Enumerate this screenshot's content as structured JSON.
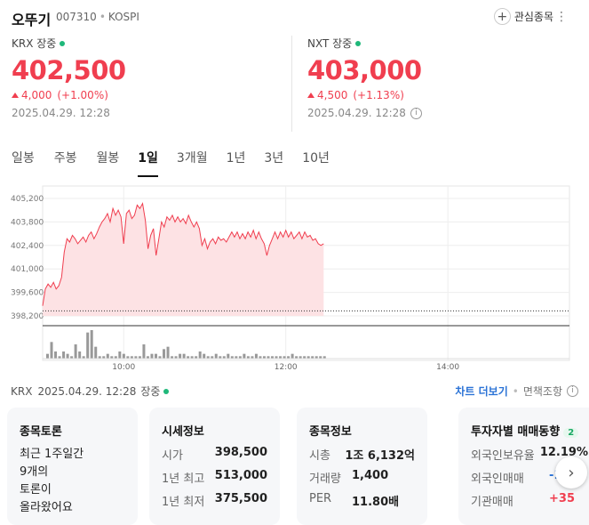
{
  "header": {
    "name": "오뚜기",
    "code": "007310",
    "market": "KOSPI",
    "watch_label": "관심종목",
    "more_icon": "more-vertical-icon"
  },
  "krx": {
    "label": "KRX 장중",
    "price": "402,500",
    "change": "4,000",
    "change_pct": "(+1.00%)",
    "timestamp": "2025.04.29. 12:28"
  },
  "nxt": {
    "label": "NXT 장중",
    "price": "403,000",
    "change": "4,500",
    "change_pct": "(+1.13%)",
    "timestamp": "2025.04.29. 12:28"
  },
  "tabs": [
    {
      "label": "일봉"
    },
    {
      "label": "주봉"
    },
    {
      "label": "월봉"
    },
    {
      "label": "1일"
    },
    {
      "label": "3개월"
    },
    {
      "label": "1년"
    },
    {
      "label": "3년"
    },
    {
      "label": "10년"
    }
  ],
  "active_tab": "1일",
  "colors": {
    "up": "#f03e4f",
    "fill": "#fde2e4",
    "live": "#1fb87a",
    "link": "#2b73d6"
  },
  "chart_data": {
    "type": "area",
    "title": "",
    "y_ticks": [
      "405,200",
      "403,800",
      "402,400",
      "401,000",
      "399,600",
      "398,200"
    ],
    "x_ticks": [
      "10:00",
      "12:00",
      "14:00"
    ],
    "ylim": [
      398200,
      405200
    ],
    "prev_close": 398500,
    "x_minutes_start": "09:00",
    "x_minutes_end": "15:30",
    "price_series": [
      [
        "09:00",
        398800
      ],
      [
        "09:02",
        399800
      ],
      [
        "09:04",
        400100
      ],
      [
        "09:06",
        399900
      ],
      [
        "09:08",
        400200
      ],
      [
        "09:10",
        399800
      ],
      [
        "09:12",
        400000
      ],
      [
        "09:14",
        400500
      ],
      [
        "09:16",
        402000
      ],
      [
        "09:18",
        402800
      ],
      [
        "09:20",
        402600
      ],
      [
        "09:22",
        403000
      ],
      [
        "09:24",
        402800
      ],
      [
        "09:26",
        402500
      ],
      [
        "09:28",
        402700
      ],
      [
        "09:30",
        402900
      ],
      [
        "09:32",
        402600
      ],
      [
        "09:34",
        403000
      ],
      [
        "09:36",
        403200
      ],
      [
        "09:38",
        402800
      ],
      [
        "09:40",
        403100
      ],
      [
        "09:42",
        403500
      ],
      [
        "09:44",
        403800
      ],
      [
        "09:46",
        404000
      ],
      [
        "09:48",
        404300
      ],
      [
        "09:50",
        403800
      ],
      [
        "09:52",
        404600
      ],
      [
        "09:54",
        404200
      ],
      [
        "09:56",
        404500
      ],
      [
        "09:58",
        404100
      ],
      [
        "10:00",
        402500
      ],
      [
        "10:02",
        404300
      ],
      [
        "10:04",
        404500
      ],
      [
        "10:06",
        404000
      ],
      [
        "10:08",
        404200
      ],
      [
        "10:10",
        404800
      ],
      [
        "10:12",
        404600
      ],
      [
        "10:14",
        404900
      ],
      [
        "10:16",
        403900
      ],
      [
        "10:18",
        402200
      ],
      [
        "10:20",
        403000
      ],
      [
        "10:22",
        403400
      ],
      [
        "10:24",
        401800
      ],
      [
        "10:26",
        402800
      ],
      [
        "10:28",
        403800
      ],
      [
        "10:30",
        403500
      ],
      [
        "10:32",
        404100
      ],
      [
        "10:34",
        403900
      ],
      [
        "10:36",
        404200
      ],
      [
        "10:38",
        403800
      ],
      [
        "10:40",
        404100
      ],
      [
        "10:42",
        403800
      ],
      [
        "10:44",
        404000
      ],
      [
        "10:46",
        403700
      ],
      [
        "10:48",
        404200
      ],
      [
        "10:50",
        403800
      ],
      [
        "10:52",
        403500
      ],
      [
        "10:54",
        403800
      ],
      [
        "10:56",
        403400
      ],
      [
        "10:58",
        402400
      ],
      [
        "11:00",
        402800
      ],
      [
        "11:02",
        402200
      ],
      [
        "11:04",
        402600
      ],
      [
        "11:06",
        402800
      ],
      [
        "11:08",
        402500
      ],
      [
        "11:10",
        402900
      ],
      [
        "11:12",
        402700
      ],
      [
        "11:14",
        402800
      ],
      [
        "11:16",
        402600
      ],
      [
        "11:18",
        402900
      ],
      [
        "11:20",
        403200
      ],
      [
        "11:22",
        402900
      ],
      [
        "11:24",
        403200
      ],
      [
        "11:26",
        402800
      ],
      [
        "11:28",
        403100
      ],
      [
        "11:30",
        402800
      ],
      [
        "11:32",
        403200
      ],
      [
        "11:34",
        402900
      ],
      [
        "11:36",
        403300
      ],
      [
        "11:38",
        402800
      ],
      [
        "11:40",
        403200
      ],
      [
        "11:42",
        402800
      ],
      [
        "11:44",
        402500
      ],
      [
        "11:46",
        401800
      ],
      [
        "11:48",
        402400
      ],
      [
        "11:50",
        402800
      ],
      [
        "11:52",
        403200
      ],
      [
        "11:54",
        402800
      ],
      [
        "11:56",
        403200
      ],
      [
        "11:58",
        402900
      ],
      [
        "12:00",
        403300
      ],
      [
        "12:02",
        402900
      ],
      [
        "12:04",
        403200
      ],
      [
        "12:06",
        402800
      ],
      [
        "12:08",
        403000
      ],
      [
        "12:10",
        403200
      ],
      [
        "12:12",
        402800
      ],
      [
        "12:14",
        403200
      ],
      [
        "12:16",
        402900
      ],
      [
        "12:18",
        403000
      ],
      [
        "12:20",
        402700
      ],
      [
        "12:22",
        402800
      ],
      [
        "12:24",
        402500
      ],
      [
        "12:26",
        402400
      ],
      [
        "12:28",
        402500
      ]
    ],
    "volume_bars": [
      2,
      7,
      3,
      1,
      3,
      2,
      1,
      6,
      3,
      1,
      11,
      12,
      5,
      1,
      1,
      2,
      1,
      1,
      3,
      2,
      1,
      1,
      1,
      1,
      6,
      1,
      2,
      2,
      1,
      4,
      5,
      1,
      1,
      2,
      2,
      1,
      1,
      1,
      3,
      2,
      1,
      1,
      2,
      1,
      1,
      2,
      1,
      1,
      1,
      2,
      1,
      1,
      2,
      1,
      1,
      1,
      1,
      1,
      1,
      1,
      1,
      2,
      1,
      1,
      1,
      1,
      1,
      1,
      1,
      1
    ]
  },
  "status": {
    "market": "KRX",
    "timestamp": "2025.04.29. 12:28",
    "state": "장중",
    "discuss_link": "차트 더보기",
    "disclaimer": "면책조항"
  },
  "cards": {
    "discussion": {
      "title": "종목토론",
      "lines": [
        "최근 1주일간",
        "9개의",
        "토론이",
        "올라왔어요"
      ]
    },
    "market_info": {
      "title": "시세정보",
      "rows": [
        {
          "k": "시가",
          "v": "398,500"
        },
        {
          "k": "1년 최고",
          "v": "513,000"
        },
        {
          "k": "1년 최저",
          "v": "375,500"
        }
      ]
    },
    "stock_info": {
      "title": "종목정보",
      "rows": [
        {
          "k": "시총",
          "v": "1조 6,132억"
        },
        {
          "k": "거래량",
          "v": "1,400"
        },
        {
          "k": "PER",
          "v": "11.80배"
        }
      ]
    },
    "investor": {
      "title": "투자자별 매매동향",
      "badge": "2",
      "rows": [
        {
          "k": "외국인보유율",
          "v": "12.19%"
        },
        {
          "k": "외국인매매",
          "v": "-1"
        },
        {
          "k": "기관매매",
          "v": "+35"
        }
      ]
    }
  }
}
